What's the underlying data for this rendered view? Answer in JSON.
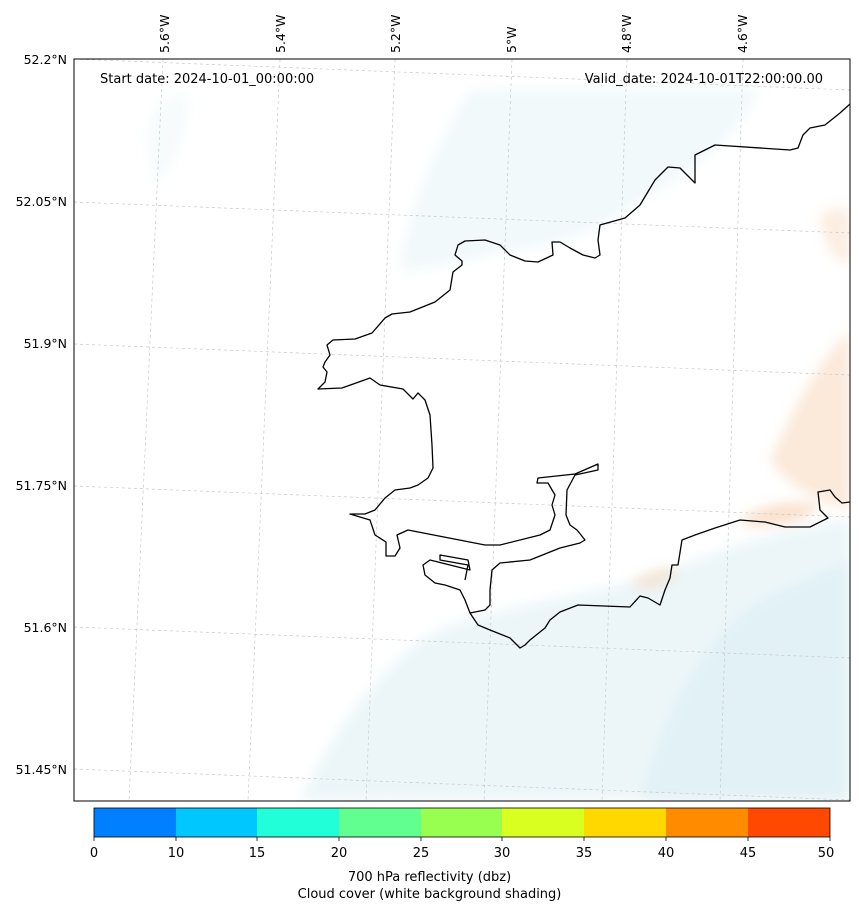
{
  "map": {
    "start_date": "Start date: 2024-10-01_00:00:00",
    "valid_date": "Valid_date: 2024-10-01T22:00:00.00",
    "lon_labels": [
      "5.6°W",
      "5.4°W",
      "5.2°W",
      "5°W",
      "4.8°W",
      "4.6°W"
    ],
    "lat_labels": [
      "52.2°N",
      "52.05°N",
      "51.9°N",
      "51.75°N",
      "51.6°N",
      "51.45°N"
    ],
    "coastline_color": "#000000",
    "cloud_color": "#d4ebf2",
    "reflectivity_color": "#f7d3b5"
  },
  "colorbar": {
    "ticks": [
      "0",
      "10",
      "15",
      "20",
      "25",
      "30",
      "35",
      "40",
      "45",
      "50"
    ],
    "colors": [
      "#0080ff",
      "#00c8ff",
      "#20ffd8",
      "#60ff90",
      "#98ff50",
      "#d8ff20",
      "#ffd800",
      "#ff8c00",
      "#ff4800"
    ],
    "label_line1": "700 hPa reflectivity (dbz)",
    "label_line2": "Cloud cover (white background shading)"
  }
}
